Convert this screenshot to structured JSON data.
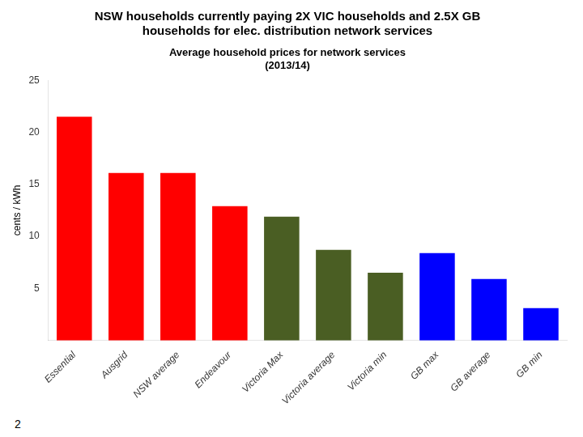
{
  "chart_data": {
    "type": "bar",
    "title": [
      "NSW households currently paying 2X VIC households and 2.5X GB",
      "households for elec. distribution network services"
    ],
    "subtitle": [
      "Average household prices for network services",
      "(2013/14)"
    ],
    "y_label": "cents / kWh",
    "categories": [
      "Essential",
      "Ausgrid",
      "NSW average",
      "Endeavour",
      "Victoria Max",
      "Victoria average",
      "Victoria min",
      "GB max",
      "GB average",
      "GB min"
    ],
    "values": [
      21.5,
      16.1,
      16.1,
      12.9,
      11.9,
      8.7,
      6.5,
      8.4,
      5.9,
      3.1
    ],
    "colors": [
      "#ff0000",
      "#ff0000",
      "#ff0000",
      "#ff0000",
      "#4a5e23",
      "#4a5e23",
      "#4a5e23",
      "#0000ff",
      "#0000ff",
      "#0000ff"
    ],
    "ylim": [
      0,
      25
    ],
    "yticks": [
      5,
      10,
      15,
      20,
      25
    ],
    "grid": false,
    "annotations": [
      "2"
    ]
  }
}
